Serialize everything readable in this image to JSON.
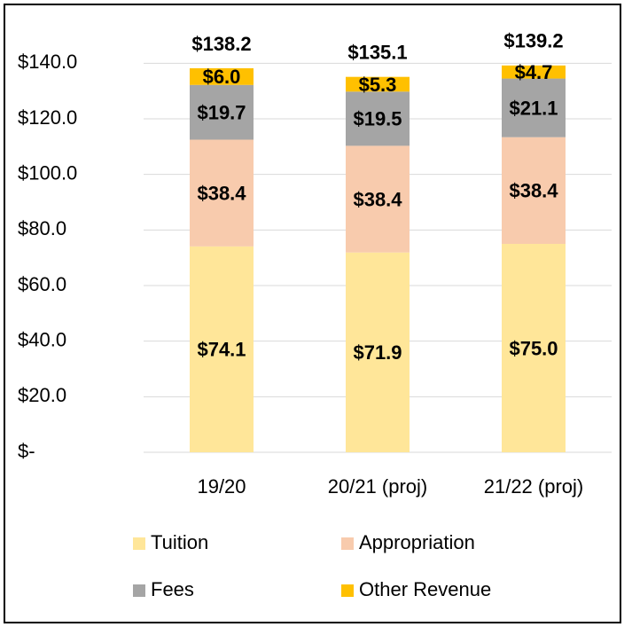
{
  "chart_data": {
    "type": "stacked_bar",
    "categories": [
      "19/20",
      "20/21 (proj)",
      "21/22 (proj)"
    ],
    "series": [
      {
        "name": "Tuition",
        "color": "#ffe699",
        "values": [
          74.1,
          71.9,
          75.0
        ],
        "value_labels": [
          "$74.1",
          "$71.9",
          "$75.0"
        ]
      },
      {
        "name": "Appropriation",
        "color": "#f8cbad",
        "values": [
          38.4,
          38.4,
          38.4
        ],
        "value_labels": [
          "$38.4",
          "$38.4",
          "$38.4"
        ]
      },
      {
        "name": "Fees",
        "color": "#a5a5a5",
        "values": [
          19.7,
          19.5,
          21.1
        ],
        "value_labels": [
          "$19.7",
          "$19.5",
          "$21.1"
        ]
      },
      {
        "name": "Other Revenue",
        "color": "#ffc000",
        "values": [
          6.0,
          5.3,
          4.7
        ],
        "value_labels": [
          "$6.0",
          "$5.3",
          "$4.7"
        ]
      }
    ],
    "total_labels": [
      "$138.2",
      "$135.1",
      "$139.2"
    ],
    "ylim": [
      0,
      150
    ],
    "yticks": [
      {
        "value": 0,
        "label": "$-"
      },
      {
        "value": 20,
        "label": "$20.0"
      },
      {
        "value": 40,
        "label": "$40.0"
      },
      {
        "value": 60,
        "label": "$60.0"
      },
      {
        "value": 80,
        "label": "$80.0"
      },
      {
        "value": 100,
        "label": "$100.0"
      },
      {
        "value": 120,
        "label": "$120.0"
      },
      {
        "value": 140,
        "label": "$140.0"
      }
    ],
    "grid": true
  }
}
